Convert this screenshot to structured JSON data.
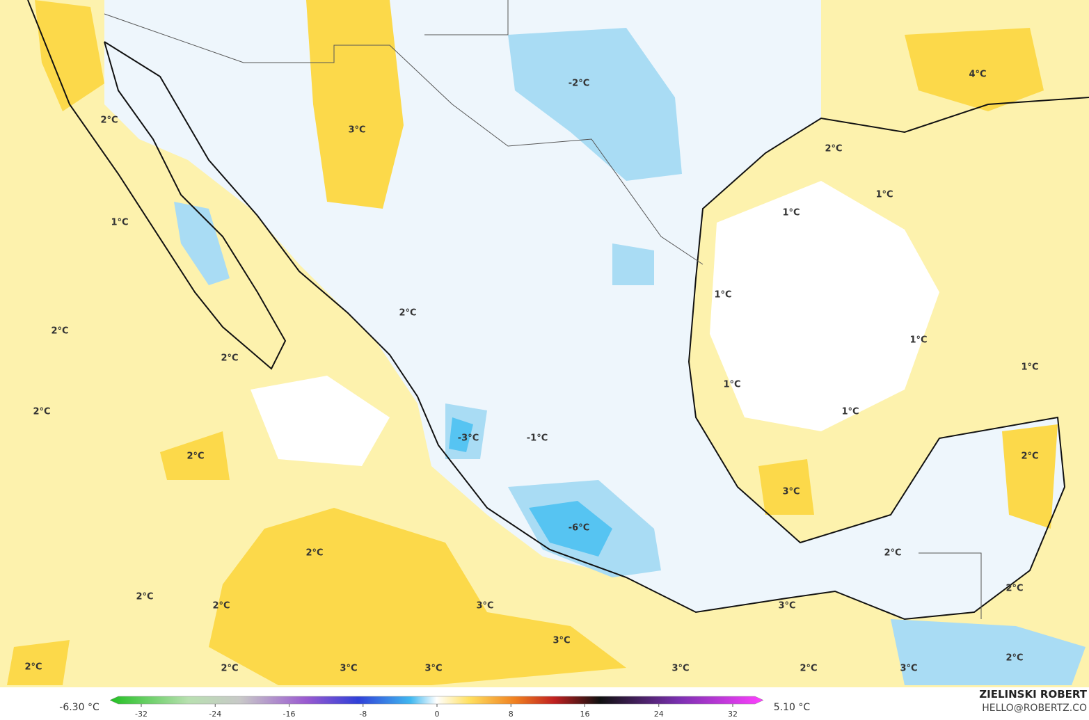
{
  "map": {
    "contour_labels": [
      "2°C",
      "3°C",
      "-2°C",
      "4°C",
      "2°C",
      "1°C",
      "1°C",
      "1°C",
      "1°C",
      "2°C",
      "2°C",
      "1°C",
      "2°C",
      "1°C",
      "1°C",
      "1°C",
      "2°C",
      "-3°C",
      "-1°C",
      "2°C",
      "2°C",
      "3°C",
      "-6°C",
      "2°C",
      "2°C",
      "2°C",
      "2°C",
      "2°C",
      "3°C",
      "3°C",
      "3°C",
      "2°C",
      "2°C",
      "3°C",
      "3°C",
      "3°C",
      "2°C",
      "3°C",
      "2°C"
    ]
  },
  "colorbar": {
    "min_label": "-6.30 °C",
    "max_label": "5.10 °C",
    "ticks": [
      -32,
      -24,
      -16,
      -8,
      0,
      8,
      16,
      24,
      32
    ]
  },
  "credit": {
    "name": "ZIELINSKI ROBERT",
    "email": "HELLO@ROBERTZ.CO"
  }
}
